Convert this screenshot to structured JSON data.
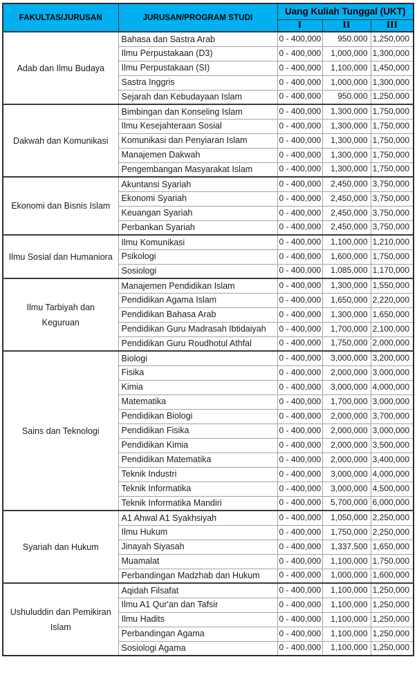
{
  "colors": {
    "header_bg": "#00B0F0",
    "header_text": "#000000",
    "border_dark": "#3a3a3a",
    "border_light": "#a3a3a3",
    "body_text": "#1c1c1c"
  },
  "header": {
    "fakultas_label": "FAKULTAS/JURUSAN",
    "prodi_label": "JURUSAN/PROGRAM STUDI",
    "ukt_label": "Uang Kuliah Tunggal (UKT)",
    "ukt_levels": [
      "I",
      "II",
      "III"
    ]
  },
  "groups": [
    {
      "fakultas": "Adab dan Ilmu Budaya",
      "rows": [
        {
          "prodi": "Bahasa dan Sastra Arab",
          "ukt1": "0 - 400,000",
          "ukt2": "950.000",
          "ukt3": "1,250,000"
        },
        {
          "prodi": "Ilmu Perpustakaan (D3)",
          "ukt1": "0 - 400,000",
          "ukt2": "1,000,000",
          "ukt3": "1,300,000"
        },
        {
          "prodi": "Ilmu Perpustakaan (SI)",
          "ukt1": "0 - 400,000",
          "ukt2": "1,100,000",
          "ukt3": "1,450,000"
        },
        {
          "prodi": "Sastra Inggris",
          "ukt1": "0 - 400,000",
          "ukt2": "1,000,000",
          "ukt3": "1,300,000"
        },
        {
          "prodi": "Sejarah dan Kebudayaan Islam",
          "ukt1": "0 - 400,000",
          "ukt2": "950.000",
          "ukt3": "1,250,000"
        }
      ]
    },
    {
      "fakultas": "Dakwah dan Komunikasi",
      "rows": [
        {
          "prodi": "Bimbingan dan Konseling Islam",
          "ukt1": "0 - 400,000",
          "ukt2": "1,300,000",
          "ukt3": "1,750,000"
        },
        {
          "prodi": "Ilmu Kesejahteraan Sosial",
          "ukt1": "0 - 400,000",
          "ukt2": "1,300,000",
          "ukt3": "1,750,000"
        },
        {
          "prodi": "Komunikasi dan Penyiaran Islam",
          "ukt1": "0 - 400,000",
          "ukt2": "1,300,000",
          "ukt3": "1,750,000"
        },
        {
          "prodi": "Manajemen Dakwah",
          "ukt1": "0 - 400,000",
          "ukt2": "1,300,000",
          "ukt3": "1,750,000"
        },
        {
          "prodi": "Pengembangan Masyarakat Islam",
          "ukt1": "0 - 400,000",
          "ukt2": "1,300,000",
          "ukt3": "1,750,000"
        }
      ]
    },
    {
      "fakultas": "Ekonomi dan Bisnis Islam",
      "rows": [
        {
          "prodi": "Akuntansi Syariah",
          "ukt1": "0 - 400,000",
          "ukt2": "2,450,000",
          "ukt3": "3,750,000"
        },
        {
          "prodi": "Ekonomi Syariah",
          "ukt1": "0 - 400,000",
          "ukt2": "2,450,000",
          "ukt3": "3,750,000"
        },
        {
          "prodi": "Keuangan Syariah",
          "ukt1": "0 - 400,000",
          "ukt2": "2,450,000",
          "ukt3": "3,750,000"
        },
        {
          "prodi": "Perbankan Syariah",
          "ukt1": "0 - 400,000",
          "ukt2": "2,450,000",
          "ukt3": "3,750,000"
        }
      ]
    },
    {
      "fakultas": "Ilmu Sosial dan Humaniora",
      "rows": [
        {
          "prodi": "Ilmu Komunikasi",
          "ukt1": "0 - 400,000",
          "ukt2": "1,100,000",
          "ukt3": "1,210,000"
        },
        {
          "prodi": "Psikologi",
          "ukt1": "0 - 400,000",
          "ukt2": "1,600,000",
          "ukt3": "1,750,000"
        },
        {
          "prodi": "Sosiologi",
          "ukt1": "0 - 400,000",
          "ukt2": "1,085,000",
          "ukt3": "1,170,000"
        }
      ]
    },
    {
      "fakultas": "Ilmu Tarbiyah dan Keguruan",
      "rows": [
        {
          "prodi": "Manajemen Pendidikan Islam",
          "ukt1": "0 - 400,000",
          "ukt2": "1,300,000",
          "ukt3": "1,550,000"
        },
        {
          "prodi": "Pendidikan Agama Islam",
          "ukt1": "0 - 400,000",
          "ukt2": "1,650,000",
          "ukt3": "2,220,000"
        },
        {
          "prodi": "Pendidikan Bahasa Arab",
          "ukt1": "0 - 400,000",
          "ukt2": "1,300,000",
          "ukt3": "1,650,000"
        },
        {
          "prodi": "Pendidikan Guru Madrasah Ibtidaiyah",
          "ukt1": "0 - 400,000",
          "ukt2": "1,700,000",
          "ukt3": "2,100,000"
        },
        {
          "prodi": "Pendidikan Guru Roudhotul Athfal",
          "ukt1": "0 - 400,000",
          "ukt2": "1,750,000",
          "ukt3": "2,000,000"
        }
      ]
    },
    {
      "fakultas": "Sains dan Teknologi",
      "rows": [
        {
          "prodi": "Biologi",
          "ukt1": "0 - 400,000",
          "ukt2": "3,000,000",
          "ukt3": "3,200,000"
        },
        {
          "prodi": "Fisika",
          "ukt1": "0 - 400,000",
          "ukt2": "2,000,000",
          "ukt3": "3,000,000"
        },
        {
          "prodi": "Kimia",
          "ukt1": "0 - 400,000",
          "ukt2": "3,000,000",
          "ukt3": "4,000,000"
        },
        {
          "prodi": "Matematika",
          "ukt1": "0 - 400,000",
          "ukt2": "1,700,000",
          "ukt3": "3,000,000"
        },
        {
          "prodi": "Pendidikan Biologi",
          "ukt1": "0 - 400,000",
          "ukt2": "2,000,000",
          "ukt3": "3,700,000"
        },
        {
          "prodi": "Pendidikan Fisika",
          "ukt1": "0 - 400,000",
          "ukt2": "2,000,000",
          "ukt3": "3,000,000"
        },
        {
          "prodi": "Pendidikan Kimia",
          "ukt1": "0 - 400,000",
          "ukt2": "2,000,000",
          "ukt3": "3,500,000"
        },
        {
          "prodi": "Pendidikan Matematika",
          "ukt1": "0 - 400,000",
          "ukt2": "2,000,000",
          "ukt3": "3,400,000"
        },
        {
          "prodi": "Teknik Industri",
          "ukt1": "0 - 400,000",
          "ukt2": "3,000,000",
          "ukt3": "4,000,000"
        },
        {
          "prodi": "Teknik Informatika",
          "ukt1": "0 - 400,000",
          "ukt2": "3,000,000",
          "ukt3": "4,500,000"
        },
        {
          "prodi": "Teknik Informatika Mandiri",
          "ukt1": "0 - 400,000",
          "ukt2": "5,700,000",
          "ukt3": "6,000,000"
        }
      ]
    },
    {
      "fakultas": "Syariah dan Hukum",
      "rows": [
        {
          "prodi": "A1 Ahwal A1 Syakhsiyah",
          "ukt1": "0 - 400,000",
          "ukt2": "1,050,000",
          "ukt3": "2,250,000"
        },
        {
          "prodi": "Ilmu Hukum",
          "ukt1": "0 - 400,000",
          "ukt2": "1,750,000",
          "ukt3": "2,250,000"
        },
        {
          "prodi": "Jinayah Siyasah",
          "ukt1": "0 - 400,000",
          "ukt2": "1,337,500",
          "ukt3": "1,650,000"
        },
        {
          "prodi": "Muamalat",
          "ukt1": "0 - 400,000",
          "ukt2": "1,100,000",
          "ukt3": "1,750,000"
        },
        {
          "prodi": "Perbandingan Madzhab dan Hukum",
          "ukt1": "0 - 400,000",
          "ukt2": "1,000,000",
          "ukt3": "1,600,000"
        }
      ]
    },
    {
      "fakultas": "Ushuluddin dan Pemikiran Islam",
      "rows": [
        {
          "prodi": "Aqidah Filsafat",
          "ukt1": "0 - 400,000",
          "ukt2": "1,100,000",
          "ukt3": "1,250,000"
        },
        {
          "prodi": "Ilmu A1 Qur'an dan Tafsir",
          "ukt1": "0 - 400,000",
          "ukt2": "1,100,000",
          "ukt3": "1,250,000"
        },
        {
          "prodi": "Ilmu Hadits",
          "ukt1": "0 - 400,000",
          "ukt2": "1,100,000",
          "ukt3": "1,250,000"
        },
        {
          "prodi": "Perbandingan Agama",
          "ukt1": "0 - 400,000",
          "ukt2": "1,100,000",
          "ukt3": "1,250,000"
        },
        {
          "prodi": "Sosiologi Agama",
          "ukt1": "0 - 400,000",
          "ukt2": "1,100,000",
          "ukt3": "1,250,000"
        }
      ]
    }
  ]
}
